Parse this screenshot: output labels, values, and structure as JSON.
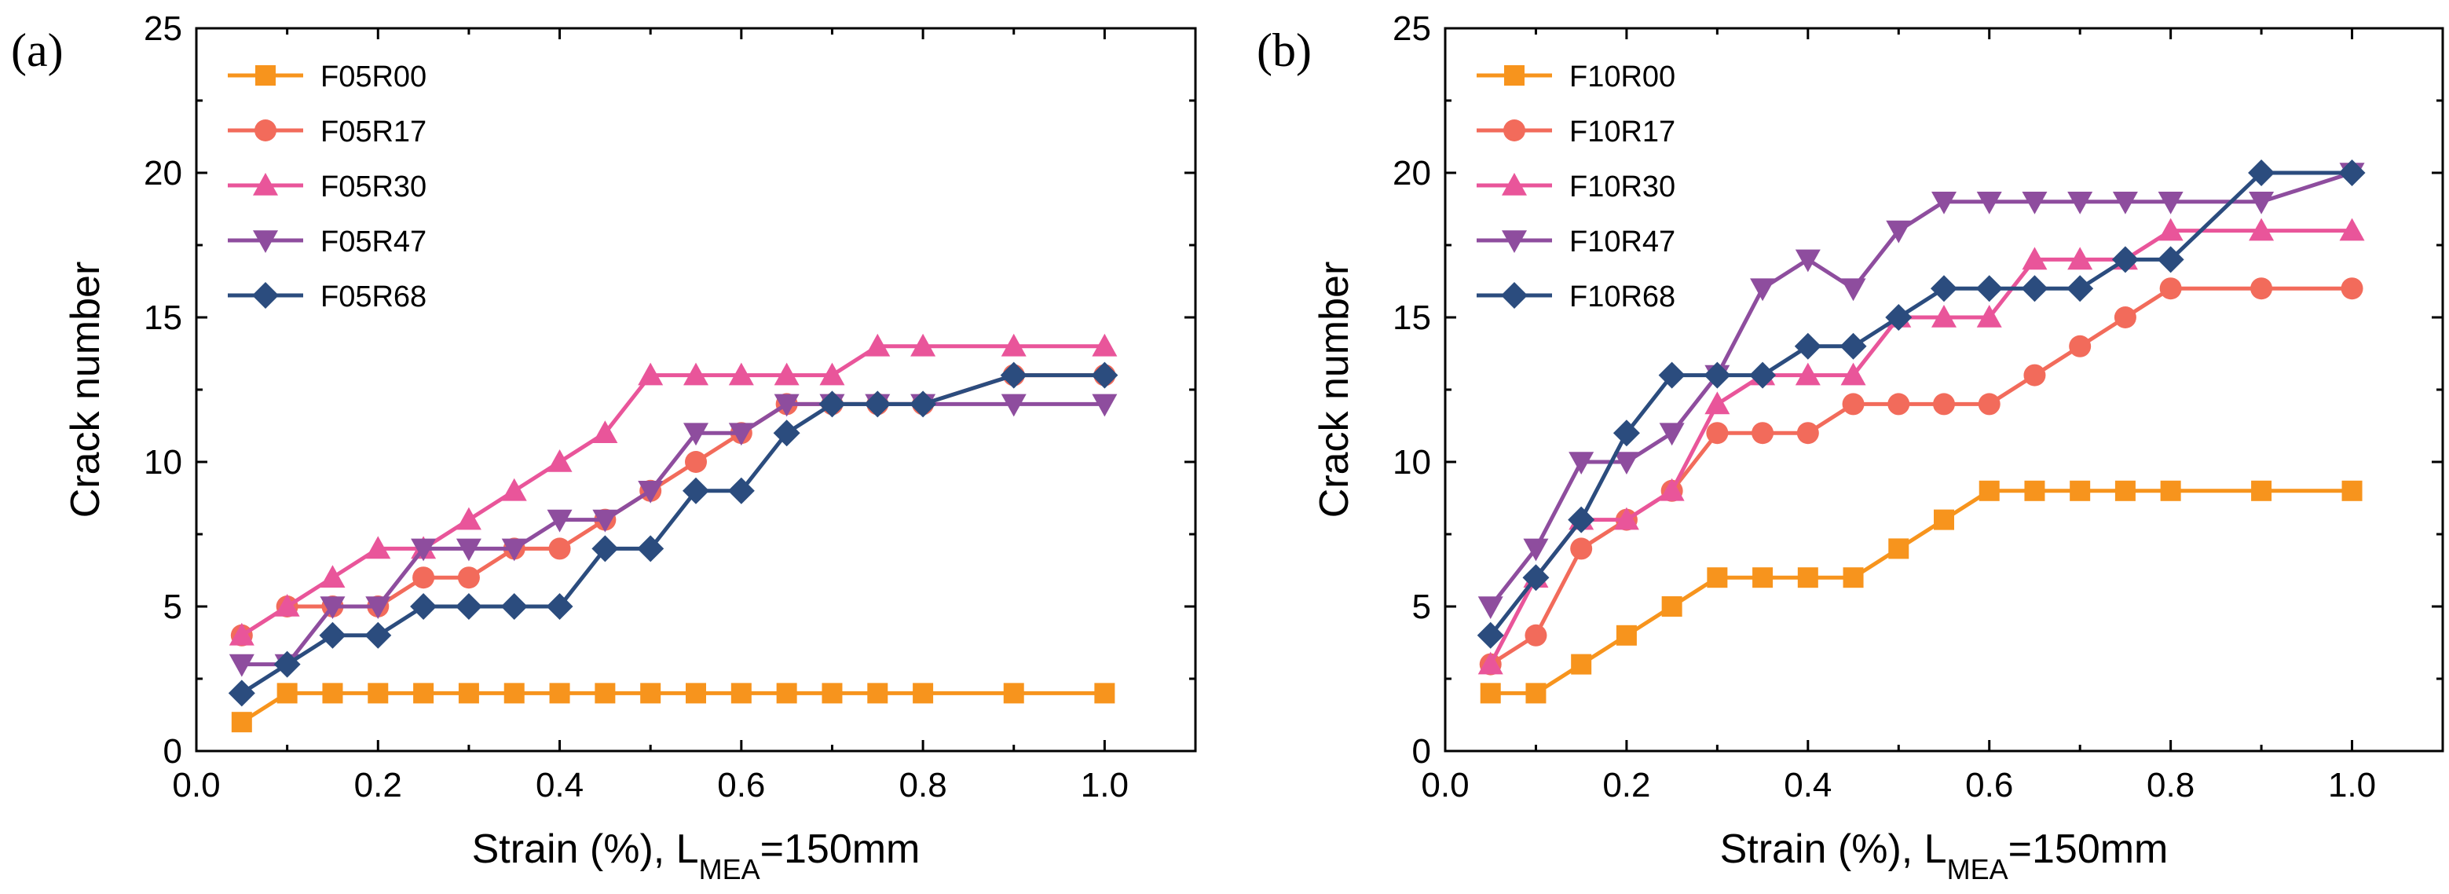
{
  "chart_data": [
    {
      "type": "line",
      "panel_label": "(a)",
      "xlabel_prefix": "Strain (%), L",
      "xlabel_sub": "MEA",
      "xlabel_suffix": "=150mm",
      "ylabel": "Crack number",
      "xlim": [
        0.0,
        1.1
      ],
      "ylim": [
        0,
        25
      ],
      "xticks": [
        "0.0",
        "0.2",
        "0.4",
        "0.6",
        "0.8",
        "1.0"
      ],
      "yticks": [
        "0",
        "5",
        "10",
        "15",
        "20",
        "25"
      ],
      "legend_position": "top-left",
      "series": [
        {
          "name": "F05R00",
          "color": "#f7941d",
          "marker": "square",
          "x": [
            0.05,
            0.1,
            0.15,
            0.2,
            0.25,
            0.3,
            0.35,
            0.4,
            0.45,
            0.5,
            0.55,
            0.6,
            0.65,
            0.7,
            0.75,
            0.8,
            0.9,
            1.0
          ],
          "y": [
            1,
            2,
            2,
            2,
            2,
            2,
            2,
            2,
            2,
            2,
            2,
            2,
            2,
            2,
            2,
            2,
            2,
            2
          ]
        },
        {
          "name": "F05R17",
          "color": "#f26b5b",
          "marker": "circle",
          "x": [
            0.05,
            0.1,
            0.15,
            0.2,
            0.25,
            0.3,
            0.35,
            0.4,
            0.45,
            0.5,
            0.55,
            0.6,
            0.65,
            0.7,
            0.75,
            0.8,
            0.9,
            1.0
          ],
          "y": [
            4,
            5,
            5,
            5,
            6,
            6,
            7,
            7,
            8,
            9,
            10,
            11,
            12,
            12,
            12,
            12,
            13,
            13
          ]
        },
        {
          "name": "F05R30",
          "color": "#e9559a",
          "marker": "triangle-up",
          "x": [
            0.05,
            0.1,
            0.15,
            0.2,
            0.25,
            0.3,
            0.35,
            0.4,
            0.45,
            0.5,
            0.55,
            0.6,
            0.65,
            0.7,
            0.75,
            0.8,
            0.9,
            1.0
          ],
          "y": [
            4,
            5,
            6,
            7,
            7,
            8,
            9,
            10,
            11,
            13,
            13,
            13,
            13,
            13,
            14,
            14,
            14,
            14
          ]
        },
        {
          "name": "F05R47",
          "color": "#8e4d9e",
          "marker": "triangle-down",
          "x": [
            0.05,
            0.1,
            0.15,
            0.2,
            0.25,
            0.3,
            0.35,
            0.4,
            0.45,
            0.5,
            0.55,
            0.6,
            0.65,
            0.7,
            0.75,
            0.8,
            0.9,
            1.0
          ],
          "y": [
            3,
            3,
            5,
            5,
            7,
            7,
            7,
            8,
            8,
            9,
            11,
            11,
            12,
            12,
            12,
            12,
            12,
            12
          ]
        },
        {
          "name": "F05R68",
          "color": "#2b4c7e",
          "marker": "diamond",
          "x": [
            0.05,
            0.1,
            0.15,
            0.2,
            0.25,
            0.3,
            0.35,
            0.4,
            0.45,
            0.5,
            0.55,
            0.6,
            0.65,
            0.7,
            0.75,
            0.8,
            0.9,
            1.0
          ],
          "y": [
            2,
            3,
            4,
            4,
            5,
            5,
            5,
            5,
            7,
            7,
            9,
            9,
            11,
            12,
            12,
            12,
            13,
            13
          ]
        }
      ]
    },
    {
      "type": "line",
      "panel_label": "(b)",
      "xlabel_prefix": "Strain (%), L",
      "xlabel_sub": "MEA",
      "xlabel_suffix": "=150mm",
      "ylabel": "Crack number",
      "xlim": [
        0.0,
        1.1
      ],
      "ylim": [
        0,
        25
      ],
      "xticks": [
        "0.0",
        "0.2",
        "0.4",
        "0.6",
        "0.8",
        "1.0"
      ],
      "yticks": [
        "0",
        "5",
        "10",
        "15",
        "20",
        "25"
      ],
      "legend_position": "top-left",
      "series": [
        {
          "name": "F10R00",
          "color": "#f7941d",
          "marker": "square",
          "x": [
            0.05,
            0.1,
            0.15,
            0.2,
            0.25,
            0.3,
            0.35,
            0.4,
            0.45,
            0.5,
            0.55,
            0.6,
            0.65,
            0.7,
            0.75,
            0.8,
            0.9,
            1.0
          ],
          "y": [
            2,
            2,
            3,
            4,
            5,
            6,
            6,
            6,
            6,
            7,
            8,
            9,
            9,
            9,
            9,
            9,
            9,
            9
          ]
        },
        {
          "name": "F10R17",
          "color": "#f26b5b",
          "marker": "circle",
          "x": [
            0.05,
            0.1,
            0.15,
            0.2,
            0.25,
            0.3,
            0.35,
            0.4,
            0.45,
            0.5,
            0.55,
            0.6,
            0.65,
            0.7,
            0.75,
            0.8,
            0.9,
            1.0
          ],
          "y": [
            3,
            4,
            7,
            8,
            9,
            11,
            11,
            11,
            12,
            12,
            12,
            12,
            13,
            14,
            15,
            16,
            16,
            16
          ]
        },
        {
          "name": "F10R30",
          "color": "#e9559a",
          "marker": "triangle-up",
          "x": [
            0.05,
            0.1,
            0.15,
            0.2,
            0.25,
            0.3,
            0.35,
            0.4,
            0.45,
            0.5,
            0.55,
            0.6,
            0.65,
            0.7,
            0.75,
            0.8,
            0.9,
            1.0
          ],
          "y": [
            3,
            6,
            8,
            8,
            9,
            12,
            13,
            13,
            13,
            15,
            15,
            15,
            17,
            17,
            17,
            18,
            18,
            18
          ]
        },
        {
          "name": "F10R47",
          "color": "#8e4d9e",
          "marker": "triangle-down",
          "x": [
            0.05,
            0.1,
            0.15,
            0.2,
            0.25,
            0.3,
            0.35,
            0.4,
            0.45,
            0.5,
            0.55,
            0.6,
            0.65,
            0.7,
            0.75,
            0.8,
            0.9,
            1.0
          ],
          "y": [
            5,
            7,
            10,
            10,
            11,
            13,
            16,
            17,
            16,
            18,
            19,
            19,
            19,
            19,
            19,
            19,
            19,
            20
          ]
        },
        {
          "name": "F10R68",
          "color": "#2b4c7e",
          "marker": "diamond",
          "x": [
            0.05,
            0.1,
            0.15,
            0.2,
            0.25,
            0.3,
            0.35,
            0.4,
            0.45,
            0.5,
            0.55,
            0.6,
            0.65,
            0.7,
            0.75,
            0.8,
            0.9,
            1.0
          ],
          "y": [
            4,
            6,
            8,
            11,
            13,
            13,
            13,
            14,
            14,
            15,
            16,
            16,
            16,
            16,
            17,
            17,
            20,
            20
          ]
        }
      ]
    }
  ]
}
